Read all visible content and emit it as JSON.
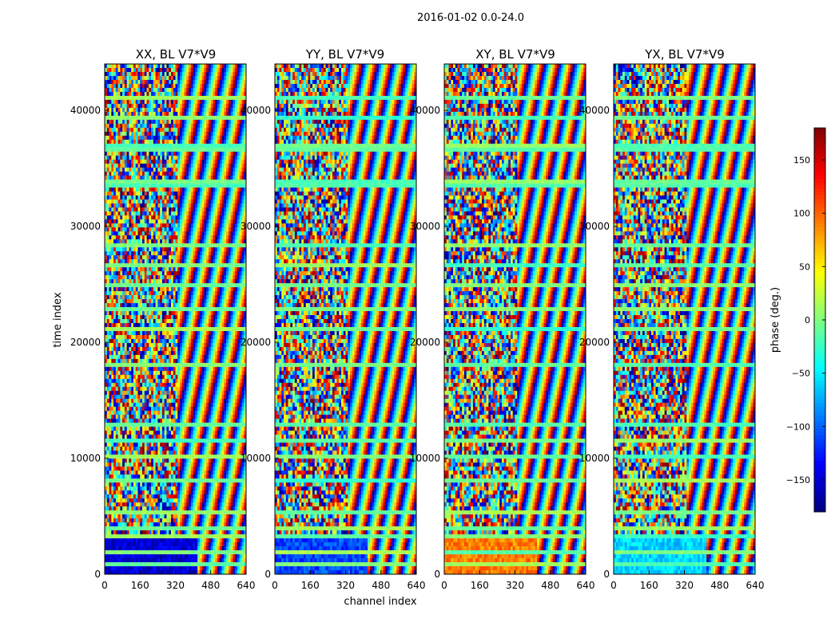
{
  "chart_data": {
    "type": "heatmap",
    "suptitle": "2016-01-02 0.0-24.0",
    "xlabel": "channel index",
    "ylabel": "time index",
    "xlim": [
      0,
      640
    ],
    "ylim": [
      0,
      44000
    ],
    "xticks": [
      "0",
      "160",
      "320",
      "480",
      "640"
    ],
    "yticks": [
      "0",
      "10000",
      "20000",
      "30000",
      "40000"
    ],
    "panels": [
      {
        "title": "XX, BL V7*V9",
        "feature_phase_deg": -150
      },
      {
        "title": "YY, BL V7*V9",
        "feature_phase_deg": -110
      },
      {
        "title": "XY, BL V7*V9",
        "feature_phase_deg": 90
      },
      {
        "title": "YX, BL V7*V9",
        "feature_phase_deg": -60
      }
    ],
    "colorbar": {
      "label": "phase (deg.)",
      "range": [
        -180,
        180
      ],
      "ticks": [
        "150",
        "100",
        "50",
        "0",
        "−50",
        "−100",
        "−150"
      ],
      "tick_values": [
        150,
        100,
        50,
        0,
        -50,
        -100,
        -150
      ],
      "colormap": "jet"
    }
  }
}
